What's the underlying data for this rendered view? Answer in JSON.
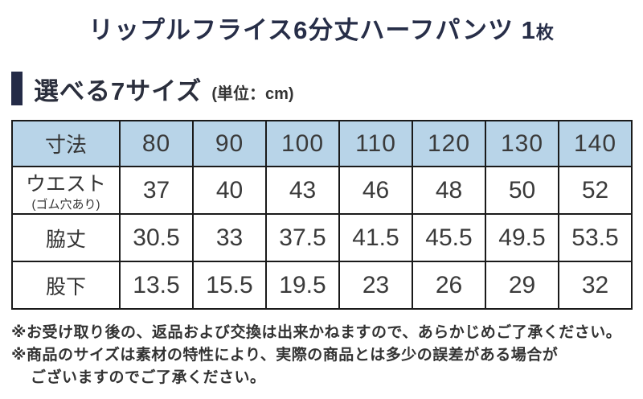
{
  "title": {
    "main": "リップルフライス6分丈ハーフパンツ",
    "count_num": " 1",
    "count_unit": "枚"
  },
  "section": {
    "heading": "選べる7サイズ",
    "unit": "(単位：cm)"
  },
  "size_table": {
    "corner_label": "寸法",
    "sizes": [
      "80",
      "90",
      "100",
      "110",
      "120",
      "130",
      "140"
    ],
    "rows": [
      {
        "label": "ウエスト",
        "sublabel": "(ゴム穴あり)",
        "values": [
          "37",
          "40",
          "43",
          "46",
          "48",
          "50",
          "52"
        ]
      },
      {
        "label": "脇丈",
        "sublabel": "",
        "values": [
          "30.5",
          "33",
          "37.5",
          "41.5",
          "45.5",
          "49.5",
          "53.5"
        ]
      },
      {
        "label": "股下",
        "sublabel": "",
        "values": [
          "13.5",
          "15.5",
          "19.5",
          "23",
          "26",
          "29",
          "32"
        ]
      }
    ]
  },
  "notes": [
    "※お受け取り後の、返品および交換は出来かねますので、あらかじめご了承ください。",
    "※商品のサイズは素材の特性により、実際の商品とは多少の誤差がある場合が",
    "ございますのでご了承ください。"
  ],
  "colors": {
    "title_navy": "#272e48",
    "heading_bar_navy": "#242b47",
    "table_header_blue": "#b8d4e8",
    "table_border": "#1a1a1a",
    "cell_text": "#3a3a3a",
    "note_text": "#333333"
  }
}
